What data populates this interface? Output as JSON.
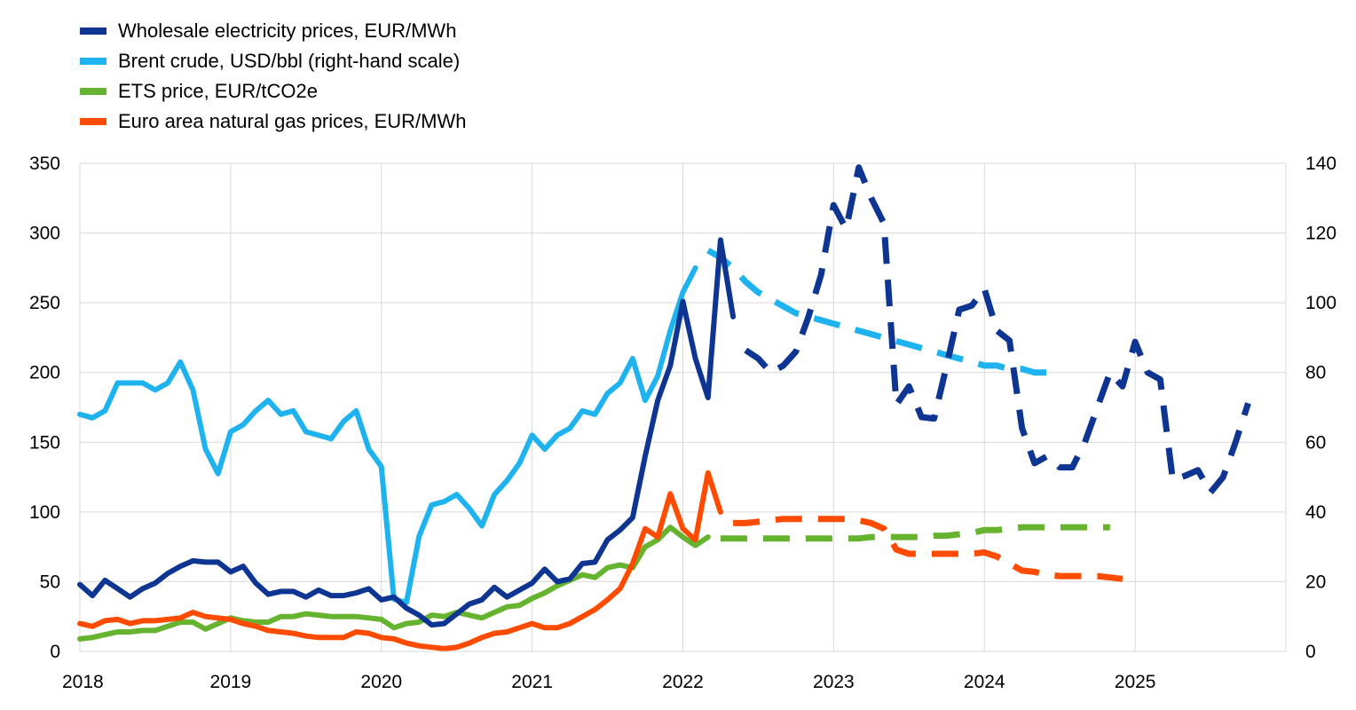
{
  "chart_data": {
    "type": "line",
    "x_start": 2018.0,
    "x_step": 0.08333,
    "xlim": [
      2018,
      2026
    ],
    "ylim_left": [
      0,
      350
    ],
    "ylim_right": [
      0,
      140
    ],
    "x_ticks": [
      "2018",
      "2019",
      "2020",
      "2021",
      "2022",
      "2023",
      "2024",
      "2025"
    ],
    "y_left_ticks": [
      "0",
      "50",
      "100",
      "150",
      "200",
      "250",
      "300",
      "350"
    ],
    "y_right_ticks": [
      "0",
      "20",
      "40",
      "60",
      "80",
      "100",
      "120",
      "140"
    ],
    "grid": true,
    "legend_position": "top-left",
    "series": [
      {
        "name": "Wholesale electricity prices, EUR/MWh",
        "axis": "left",
        "color": "#0d3591",
        "actual_values": [
          48,
          40,
          51,
          45,
          39,
          45,
          49,
          56,
          61,
          65,
          64,
          64,
          57,
          61,
          49,
          41,
          43,
          43,
          39,
          44,
          40,
          40,
          42,
          45,
          37,
          39,
          31,
          26,
          19,
          20,
          27,
          34,
          37,
          46,
          39,
          44,
          49,
          59,
          50,
          52,
          63,
          64,
          80,
          87,
          96,
          140,
          180,
          205,
          251,
          210,
          182,
          295,
          240
        ],
        "projected_values": [
          216,
          210,
          200,
          205,
          215,
          240,
          270,
          320,
          303,
          347,
          325,
          307,
          177,
          190,
          168,
          167,
          205,
          245,
          248,
          260,
          230,
          223,
          160,
          135,
          140,
          132,
          132,
          150,
          175,
          200,
          190,
          222,
          200,
          195,
          123,
          126,
          130,
          114,
          125,
          150,
          178
        ]
      },
      {
        "name": "Brent crude, USD/bbl (right-hand scale)",
        "axis": "right",
        "color": "#1eb3ee",
        "actual_values": [
          68,
          67,
          69,
          77,
          77,
          77,
          75,
          77,
          83,
          75,
          58,
          51,
          63,
          65,
          69,
          72,
          68,
          69,
          63,
          62,
          61,
          66,
          69,
          58,
          53,
          15,
          14,
          33,
          42,
          43,
          45,
          41,
          36,
          45,
          49,
          54,
          62,
          58,
          62,
          64,
          69,
          68,
          74,
          77,
          84,
          72,
          79,
          92,
          103,
          110
        ],
        "projected_values": [
          115,
          113,
          110,
          106,
          103,
          101,
          99,
          97,
          96,
          95,
          94,
          93,
          92,
          91,
          90,
          89,
          88,
          87,
          86,
          85,
          84,
          83,
          82,
          82,
          81,
          81,
          80,
          80
        ]
      },
      {
        "name": "ETS price, EUR/tCO2e",
        "axis": "left",
        "color": "#65b32e",
        "actual_values": [
          9,
          10,
          12,
          14,
          14,
          15,
          15,
          18,
          21,
          21,
          16,
          20,
          24,
          22,
          21,
          21,
          25,
          25,
          27,
          26,
          25,
          25,
          25,
          24,
          23,
          17,
          20,
          21,
          26,
          25,
          28,
          26,
          24,
          28,
          32,
          33,
          38,
          42,
          47,
          51,
          55,
          53,
          60,
          62,
          60,
          75,
          80,
          89,
          82,
          76,
          82
        ],
        "projected_values": [
          81,
          81,
          81,
          81,
          81,
          81,
          81,
          81,
          81,
          81,
          81,
          81,
          82,
          82,
          82,
          82,
          82,
          83,
          83,
          84,
          85,
          87,
          87,
          88,
          89,
          89,
          89,
          89,
          89,
          89,
          89,
          89
        ]
      },
      {
        "name": "Euro area natural gas prices, EUR/MWh",
        "axis": "left",
        "color": "#ff4b00",
        "actual_values": [
          20,
          18,
          22,
          23,
          20,
          22,
          22,
          23,
          24,
          28,
          25,
          24,
          23,
          20,
          18,
          15,
          14,
          13,
          11,
          10,
          10,
          10,
          14,
          13,
          10,
          9,
          6,
          4,
          3,
          2,
          3,
          6,
          10,
          13,
          14,
          17,
          20,
          17,
          17,
          20,
          25,
          30,
          37,
          45,
          63,
          88,
          82,
          113,
          88,
          80,
          128,
          100
        ],
        "projected_values": [
          92,
          92,
          93,
          94,
          95,
          95,
          95,
          95,
          95,
          95,
          94,
          92,
          88,
          73,
          70,
          70,
          70,
          70,
          70,
          70,
          71,
          68,
          63,
          58,
          57,
          55,
          54,
          54,
          54,
          54,
          53,
          52
        ]
      }
    ]
  }
}
